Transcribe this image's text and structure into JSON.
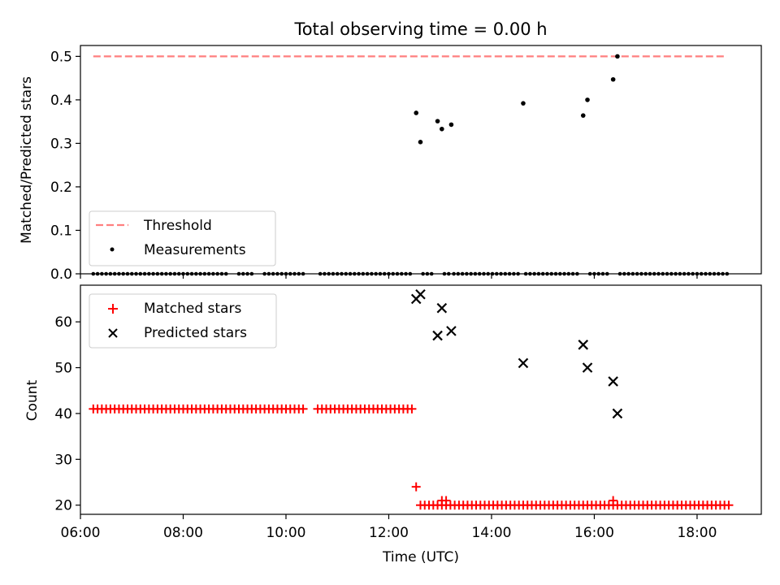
{
  "colors": {
    "threshold": "#ff7f7f",
    "measurement": "#000000",
    "matched": "#ff0000",
    "predicted": "#000000",
    "axes": "#000000",
    "background": "#ffffff"
  },
  "chart_data": [
    {
      "type": "scatter",
      "title": "Total observing time = 0.00 h",
      "xlabel": "",
      "ylabel": "Matched/Predicted stars",
      "xlim": [
        "06:00",
        "19:15"
      ],
      "ylim": [
        0,
        0.525
      ],
      "yticks": [
        0.0,
        0.1,
        0.2,
        0.3,
        0.4,
        0.5
      ],
      "ytick_labels": [
        "0.0",
        "0.1",
        "0.2",
        "0.3",
        "0.4",
        "0.5"
      ],
      "grid": false,
      "legend_position": "lower-left",
      "series": [
        {
          "name": "Threshold",
          "style": "dashed-line",
          "x": [
            "06:15",
            "18:35"
          ],
          "y": [
            0.5,
            0.5
          ]
        },
        {
          "name": "Measurements",
          "style": "dot",
          "x": [
            "12:32",
            "12:37",
            "12:57",
            "13:02",
            "13:13",
            "14:37",
            "15:47",
            "15:52",
            "16:22",
            "16:27"
          ],
          "y": [
            0.37,
            0.303,
            0.351,
            0.333,
            0.343,
            0.392,
            0.364,
            0.4,
            0.447,
            0.5
          ],
          "zero_runs": [
            [
              "06:15",
              "12:29"
            ],
            [
              "12:40",
              "12:53"
            ],
            [
              "13:05",
              "13:10"
            ],
            [
              "13:16",
              "14:34"
            ],
            [
              "14:40",
              "15:44"
            ],
            [
              "15:55",
              "16:19"
            ],
            [
              "16:30",
              "18:35"
            ]
          ],
          "zero_gaps": [
            [
              "08:55",
              "09:00"
            ],
            [
              "09:25",
              "09:30"
            ],
            [
              "10:25",
              "10:35"
            ]
          ]
        }
      ]
    },
    {
      "type": "scatter",
      "title": "",
      "xlabel": "Time (UTC)",
      "ylabel": "Count",
      "xlim": [
        "06:00",
        "19:15"
      ],
      "ylim": [
        18,
        68
      ],
      "xticks": [
        "06:00",
        "08:00",
        "10:00",
        "12:00",
        "14:00",
        "16:00",
        "18:00"
      ],
      "yticks": [
        20,
        30,
        40,
        50,
        60
      ],
      "ytick_labels": [
        "20",
        "30",
        "40",
        "50",
        "60"
      ],
      "grid": false,
      "legend_position": "upper-left",
      "series": [
        {
          "name": "Matched stars",
          "marker": "+",
          "runs": [
            {
              "from": "06:15",
              "to": "10:22",
              "y": 41
            },
            {
              "from": "10:37",
              "to": "12:29",
              "y": 41
            },
            {
              "from": "12:37",
              "to": "18:37",
              "y": 20
            }
          ],
          "extra": [
            {
              "x": "12:32",
              "y": 24
            },
            {
              "x": "13:02",
              "y": 21
            },
            {
              "x": "13:07",
              "y": 21
            },
            {
              "x": "16:22",
              "y": 21
            }
          ]
        },
        {
          "name": "Predicted stars",
          "marker": "x",
          "x": [
            "12:32",
            "12:37",
            "12:57",
            "13:02",
            "13:13",
            "14:37",
            "15:47",
            "15:52",
            "16:22",
            "16:27"
          ],
          "y": [
            65,
            66,
            57,
            63,
            58,
            51,
            55,
            50,
            47,
            40
          ]
        }
      ]
    }
  ]
}
